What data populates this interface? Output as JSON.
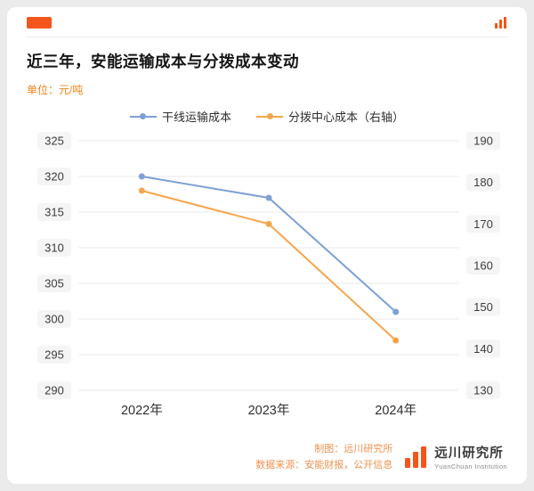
{
  "colors": {
    "accent": "#f4551c",
    "series_blue": "#7da1d6",
    "series_orange": "#f7a54a",
    "unit_text": "#f08519",
    "footer_text": "#f0914e",
    "grid": "#e8e8e8"
  },
  "header": {
    "title": "近三年，安能运输成本与分拨成本变动",
    "unit_label": "单位：元/吨"
  },
  "legend": [
    {
      "label": "干线运输成本",
      "color": "#7da1d6"
    },
    {
      "label": "分拨中心成本（右轴）",
      "color": "#f7a54a"
    }
  ],
  "chart_data": {
    "type": "line",
    "title": "近三年，安能运输成本与分拨成本变动",
    "categories": [
      "2022年",
      "2023年",
      "2024年"
    ],
    "series": [
      {
        "name": "干线运输成本",
        "axis": "left",
        "color": "#7da1d6",
        "values": [
          320,
          317,
          301
        ]
      },
      {
        "name": "分拨中心成本（右轴）",
        "axis": "right",
        "color": "#f7a54a",
        "values": [
          178,
          170,
          142
        ]
      }
    ],
    "left_axis": {
      "label": "元/吨",
      "min": 290,
      "max": 325,
      "ticks": [
        325,
        320,
        315,
        310,
        305,
        300,
        295,
        290
      ]
    },
    "right_axis": {
      "min": 130,
      "max": 190,
      "ticks": [
        190,
        180,
        170,
        160,
        150,
        140,
        130
      ]
    },
    "grid": true,
    "legend_position": "top"
  },
  "footer": {
    "credit": "制图：远川研究所",
    "source": "数据来源：安能财报，公开信息",
    "logo_cn": "远川研究所",
    "logo_en": "YuanChuan Institution"
  }
}
